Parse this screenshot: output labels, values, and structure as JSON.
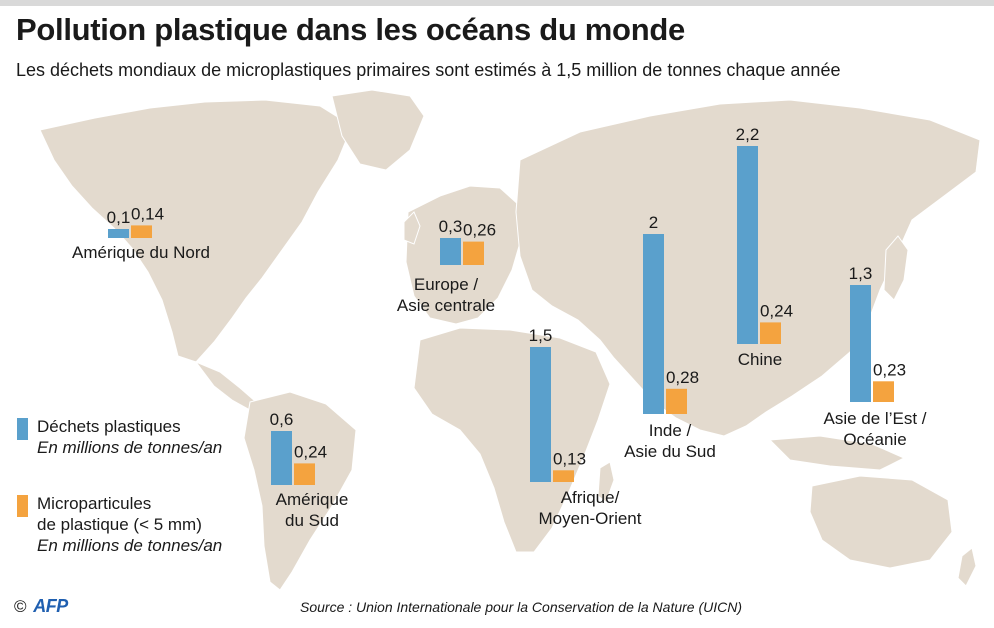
{
  "title": "Pollution plastique dans les océans du monde",
  "subtitle": "Les déchets mondiaux de microplastiques primaires sont estimés à 1,5 million de tonnes chaque année",
  "colors": {
    "waste": "#5aa0cc",
    "micro": "#f4a33f",
    "land": "#e3dace"
  },
  "legend": {
    "waste": {
      "label": "Déchets plastiques",
      "unit": "En millions de tonnes/an"
    },
    "micro": {
      "label_line1": "Microparticules",
      "label_line2": "de plastique (< 5 mm)",
      "unit": "En millions de tonnes/an"
    }
  },
  "source": "Source : Union Internationale pour la Conservation de la Nature (UICN)",
  "credit": {
    "copyright": "©",
    "agency": "AFP"
  },
  "chart_data": {
    "type": "bar",
    "title": "Pollution plastique dans les océans du monde",
    "series": [
      {
        "name": "Déchets plastiques",
        "unit": "En millions de tonnes/an"
      },
      {
        "name": "Microparticules de plastique (< 5 mm)",
        "unit": "En millions de tonnes/an"
      }
    ],
    "regions": [
      {
        "name_lines": [
          "Amérique du Nord"
        ],
        "waste": 0.1,
        "waste_label": "0,1",
        "micro": 0.14,
        "micro_label": "0,14"
      },
      {
        "name_lines": [
          "Europe /",
          "Asie centrale"
        ],
        "waste": 0.3,
        "waste_label": "0,3",
        "micro": 0.26,
        "micro_label": "0,26"
      },
      {
        "name_lines": [
          "Amérique",
          "du Sud"
        ],
        "waste": 0.6,
        "waste_label": "0,6",
        "micro": 0.24,
        "micro_label": "0,24"
      },
      {
        "name_lines": [
          "Afrique/",
          "Moyen-Orient"
        ],
        "waste": 1.5,
        "waste_label": "1,5",
        "micro": 0.13,
        "micro_label": "0,13"
      },
      {
        "name_lines": [
          "Inde /",
          "Asie du Sud"
        ],
        "waste": 2.0,
        "waste_label": "2",
        "micro": 0.28,
        "micro_label": "0,28"
      },
      {
        "name_lines": [
          "Chine"
        ],
        "waste": 2.2,
        "waste_label": "2,2",
        "micro": 0.24,
        "micro_label": "0,24"
      },
      {
        "name_lines": [
          "Asie de l’Est /",
          "Océanie"
        ],
        "waste": 1.3,
        "waste_label": "1,3",
        "micro": 0.23,
        "micro_label": "0,23"
      }
    ]
  }
}
